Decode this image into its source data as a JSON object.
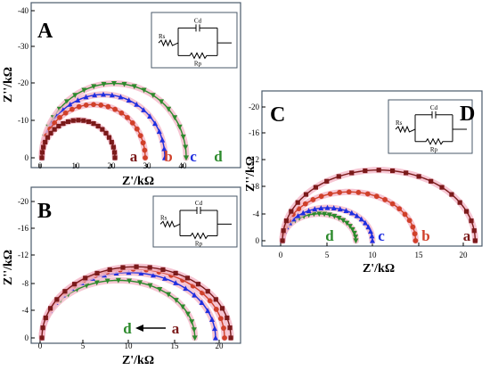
{
  "panels": [
    {
      "id": "A",
      "label": "A",
      "xlabel": "Z'/kΩ",
      "ylabel": "Z''/kΩ",
      "x_ticks": [
        "0",
        "10",
        "20",
        "30",
        "40"
      ],
      "y_ticks": [
        "0",
        "-10",
        "-20",
        "-30",
        "-40"
      ],
      "circuit": {
        "cd": "Cd",
        "rs": "Rs",
        "rp": "Rp"
      },
      "curve_labels": [
        "a",
        "b",
        "c",
        "d"
      ],
      "arrow": false
    },
    {
      "id": "B",
      "label": "B",
      "xlabel": "Z'/kΩ",
      "ylabel": "Z''/kΩ",
      "x_ticks": [
        "0",
        "5",
        "10",
        "15",
        "20"
      ],
      "y_ticks": [
        "0",
        "-4",
        "-8",
        "-12",
        "-16",
        "-20"
      ],
      "circuit": {
        "cd": "Cd",
        "rs": "Rs",
        "rp": "Rp"
      },
      "curve_labels": [
        "d",
        "a"
      ],
      "arrow": true
    },
    {
      "id": "C",
      "label": "C",
      "sublabel": "D",
      "xlabel": "Z'/kΩ",
      "ylabel": "Z''/kΩ",
      "x_ticks": [
        "0",
        "5",
        "10",
        "15",
        "20"
      ],
      "y_ticks": [
        "0",
        "-4",
        "-8",
        "-12",
        "-16",
        "-20"
      ],
      "circuit": {
        "cd": "Cd",
        "rs": "Rs",
        "rp": "Rp"
      },
      "curve_labels": [
        "d",
        "c",
        "b",
        "a"
      ],
      "arrow": false
    }
  ],
  "colors": {
    "a": "#7b1a1a",
    "b": "#d0402a",
    "c": "#1f2ee0",
    "d": "#2c8a2c",
    "halo": "#f4b8c8",
    "frame": "#4a5a6a"
  },
  "chart_data": [
    {
      "type": "scatter",
      "panel": "A",
      "xlim": [
        -2,
        43
      ],
      "ylim": [
        0,
        -40
      ],
      "series": [
        {
          "name": "a",
          "marker": "square",
          "x0": 0.5,
          "diameter": 20.5
        },
        {
          "name": "b",
          "marker": "circle",
          "x0": 0.5,
          "diameter": 29
        },
        {
          "name": "c",
          "marker": "triangle-up",
          "x0": 0.5,
          "diameter": 34.5
        },
        {
          "name": "d",
          "marker": "triangle-down",
          "x0": 0.5,
          "diameter": 40.5
        }
      ]
    },
    {
      "type": "scatter",
      "panel": "B",
      "xlim": [
        -1,
        22.5
      ],
      "ylim": [
        0,
        -22
      ],
      "series": [
        {
          "name": "a",
          "marker": "square",
          "x0": 0.2,
          "diameter": 21
        },
        {
          "name": "b",
          "marker": "circle",
          "x0": 0.2,
          "diameter": 20.3
        },
        {
          "name": "c",
          "marker": "triangle-up",
          "x0": 0.2,
          "diameter": 19.3
        },
        {
          "name": "d",
          "marker": "triangle-down",
          "x0": 0.2,
          "diameter": 17
        }
      ]
    },
    {
      "type": "scatter",
      "panel": "C",
      "xlim": [
        -1,
        22.5
      ],
      "ylim": [
        0,
        -22
      ],
      "series": [
        {
          "name": "a",
          "marker": "square",
          "x0": 0.2,
          "diameter": 21
        },
        {
          "name": "b",
          "marker": "circle",
          "x0": 0.2,
          "diameter": 14.5
        },
        {
          "name": "c",
          "marker": "triangle-up",
          "x0": 0.2,
          "diameter": 9.8
        },
        {
          "name": "d",
          "marker": "triangle-down",
          "x0": 0.2,
          "diameter": 8
        }
      ]
    }
  ]
}
